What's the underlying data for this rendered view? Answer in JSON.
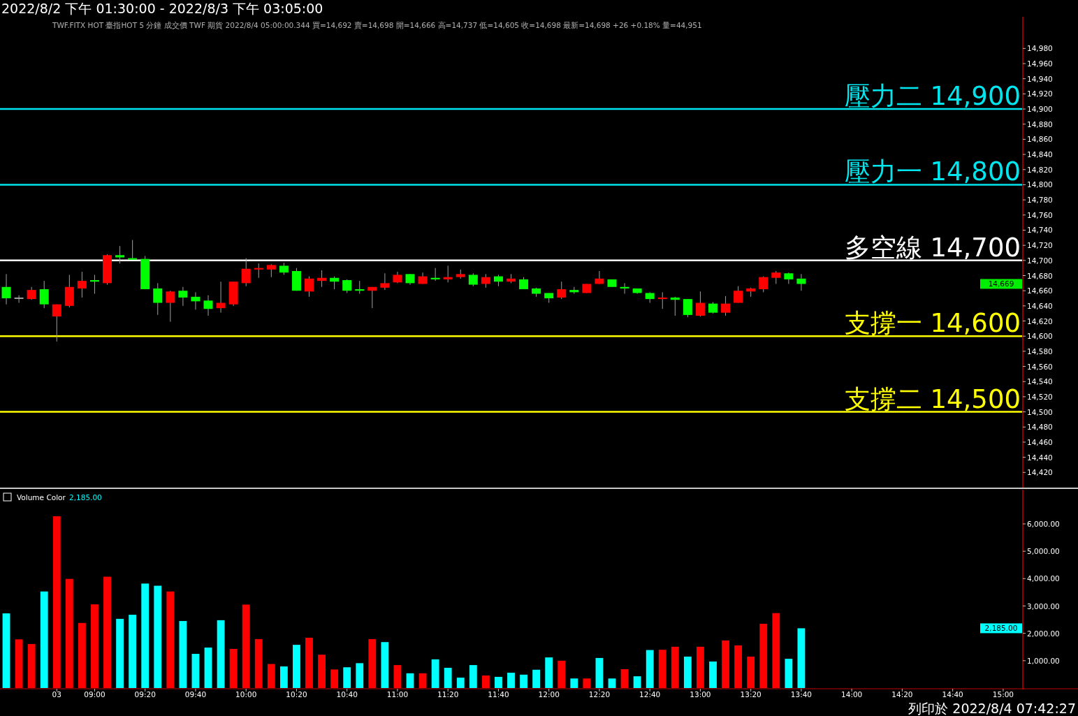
{
  "chart_data": [
    {
      "type": "candlestick",
      "title": "2022/8/2 下午 01:30:00 - 2022/8/3 下午 03:05:00",
      "subtitle": "TWF.FITX HOT  臺指HOT 5 分鐘  成交價 TWF 期貨 2022/8/4 05:00:00.344 買=14,692 賣=14,698 開=14,666 高=14,737 低=14,605 收=14,698 最新=14,698 +26 +0.18% 量=44,951",
      "categories": [
        null,
        null,
        null,
        null,
        null,
        null,
        null,
        null,
        null,
        null,
        null,
        null,
        null,
        null,
        null,
        null,
        null,
        null,
        null,
        null,
        null,
        null,
        null,
        null,
        null,
        null,
        null,
        null,
        null,
        null,
        null,
        null,
        null,
        null,
        null,
        null,
        null,
        null,
        null,
        null,
        null,
        null,
        null,
        null,
        null,
        null,
        null,
        null,
        null,
        null,
        null,
        null,
        null,
        null,
        null,
        null,
        null,
        null,
        null,
        null,
        null,
        null,
        null,
        null,
        null,
        null,
        null,
        null,
        null,
        null,
        null,
        null,
        null,
        null,
        null,
        null,
        null,
        null,
        null,
        null,
        null
      ],
      "ohlc": [
        [
          14665,
          14682,
          14642,
          14650
        ],
        [
          14651,
          14654,
          14644,
          14651
        ],
        [
          14649,
          14665,
          14648,
          14661
        ],
        [
          14662,
          14673,
          14637,
          14642
        ],
        [
          14626,
          14642,
          14593,
          14642
        ],
        [
          14640,
          14681,
          14638,
          14665
        ],
        [
          14663,
          14685,
          14651,
          14673
        ],
        [
          14674,
          14681,
          14656,
          14672
        ],
        [
          14670,
          14708,
          14668,
          14707
        ],
        [
          14707,
          14719,
          14696,
          14704
        ],
        [
          14703,
          14727,
          14701,
          14701
        ],
        [
          14702,
          14706,
          14662,
          14662
        ],
        [
          14663,
          14670,
          14628,
          14644
        ],
        [
          14644,
          14660,
          14619,
          14659
        ],
        [
          14660,
          14665,
          14640,
          14651
        ],
        [
          14652,
          14658,
          14635,
          14646
        ],
        [
          14647,
          14654,
          14627,
          14636
        ],
        [
          14637,
          14672,
          14631,
          14644
        ],
        [
          14642,
          14672,
          14640,
          14672
        ],
        [
          14670,
          14703,
          14666,
          14689
        ],
        [
          14688,
          14696,
          14677,
          14690
        ],
        [
          14688,
          14695,
          14678,
          14694
        ],
        [
          14693,
          14697,
          14681,
          14684
        ],
        [
          14686,
          14690,
          14660,
          14660
        ],
        [
          14659,
          14679,
          14652,
          14676
        ],
        [
          14673,
          14687,
          14665,
          14677
        ],
        [
          14677,
          14679,
          14662,
          14672
        ],
        [
          14674,
          14675,
          14657,
          14660
        ],
        [
          14662,
          14673,
          14656,
          14660
        ],
        [
          14660,
          14665,
          14637,
          14665
        ],
        [
          14664,
          14683,
          14661,
          14670
        ],
        [
          14671,
          14685,
          14670,
          14681
        ],
        [
          14682,
          14682,
          14668,
          14670
        ],
        [
          14669,
          14684,
          14669,
          14679
        ],
        [
          14677,
          14690,
          14673,
          14675
        ],
        [
          14675,
          14693,
          14671,
          14678
        ],
        [
          14678,
          14688,
          14676,
          14682
        ],
        [
          14681,
          14683,
          14666,
          14668
        ],
        [
          14669,
          14682,
          14664,
          14678
        ],
        [
          14679,
          14681,
          14666,
          14672
        ],
        [
          14672,
          14682,
          14670,
          14676
        ],
        [
          14675,
          14678,
          14662,
          14662
        ],
        [
          14663,
          14664,
          14652,
          14656
        ],
        [
          14657,
          14657,
          14644,
          14650
        ],
        [
          14651,
          14672,
          14649,
          14662
        ],
        [
          14661,
          14665,
          14656,
          14658
        ],
        [
          14657,
          14669,
          14657,
          14669
        ],
        [
          14669,
          14686,
          14669,
          14676
        ],
        [
          14675,
          14675,
          14665,
          14665
        ],
        [
          14665,
          14670,
          14656,
          14663
        ],
        [
          14663,
          14663,
          14656,
          14657
        ],
        [
          14657,
          14658,
          14644,
          14649
        ],
        [
          14649,
          14658,
          14636,
          14651
        ],
        [
          14651,
          14652,
          14627,
          14648
        ],
        [
          14649,
          14649,
          14625,
          14628
        ],
        [
          14627,
          14659,
          14626,
          14644
        ],
        [
          14643,
          14645,
          14630,
          14631
        ],
        [
          14631,
          14653,
          14627,
          14643
        ],
        [
          14644,
          14666,
          14644,
          14660
        ],
        [
          14659,
          14664,
          14652,
          14663
        ],
        [
          14662,
          14679,
          14658,
          14678
        ],
        [
          14677,
          14686,
          14669,
          14684
        ],
        [
          14683,
          14684,
          14669,
          14675
        ],
        [
          14676,
          14682,
          14660,
          14669
        ],
        null,
        null,
        null,
        null,
        null,
        null,
        null,
        null,
        null,
        null,
        null,
        null,
        null,
        null,
        null,
        null,
        null
      ],
      "colors": [
        "#00ff00",
        "#a0a0a0",
        "#ff0000",
        "#00ff00",
        "#ff0000",
        "#ff0000",
        "#ff0000",
        "#00ff00",
        "#ff0000",
        "#00ff00",
        "#00ff00",
        "#00ff00",
        "#00ff00",
        "#ff0000",
        "#00ff00",
        "#00ff00",
        "#00ff00",
        "#ff0000",
        "#ff0000",
        "#ff0000",
        "#ff0000",
        "#ff0000",
        "#00ff00",
        "#00ff00",
        "#ff0000",
        "#ff0000",
        "#00ff00",
        "#00ff00",
        "#00ff00",
        "#ff0000",
        "#ff0000",
        "#ff0000",
        "#00ff00",
        "#ff0000",
        "#00ff00",
        "#ff0000",
        "#ff0000",
        "#00ff00",
        "#ff0000",
        "#00ff00",
        "#ff0000",
        "#00ff00",
        "#00ff00",
        "#00ff00",
        "#ff0000",
        "#00ff00",
        "#ff0000",
        "#ff0000",
        "#00ff00",
        "#00ff00",
        "#00ff00",
        "#00ff00",
        "#ff0000",
        "#00ff00",
        "#00ff00",
        "#ff0000",
        "#00ff00",
        "#ff0000",
        "#ff0000",
        "#ff0000",
        "#ff0000",
        "#ff0000",
        "#00ff00",
        "#00ff00",
        null,
        null,
        null,
        null,
        null,
        null,
        null,
        null,
        null,
        null,
        null,
        null,
        null,
        null,
        null,
        null,
        null
      ],
      "ylim": [
        14400,
        15020
      ],
      "yticks": [
        {
          "value": 14420,
          "label": "14,420"
        },
        {
          "value": 14440,
          "label": "14,440"
        },
        {
          "value": 14460,
          "label": "14,460"
        },
        {
          "value": 14480,
          "label": "14,480"
        },
        {
          "value": 14500,
          "label": "14,500"
        },
        {
          "value": 14520,
          "label": "14,520"
        },
        {
          "value": 14540,
          "label": "14,540"
        },
        {
          "value": 14560,
          "label": "14,560"
        },
        {
          "value": 14580,
          "label": "14,580"
        },
        {
          "value": 14600,
          "label": "14,600"
        },
        {
          "value": 14620,
          "label": "14,620"
        },
        {
          "value": 14640,
          "label": "14,640"
        },
        {
          "value": 14660,
          "label": "14,660"
        },
        {
          "value": 14680,
          "label": "14,680"
        },
        {
          "value": 14700,
          "label": "14,700"
        },
        {
          "value": 14720,
          "label": "14,720"
        },
        {
          "value": 14740,
          "label": "14,740"
        },
        {
          "value": 14760,
          "label": "14,760"
        },
        {
          "value": 14780,
          "label": "14,780"
        },
        {
          "value": 14800,
          "label": "14,800"
        },
        {
          "value": 14820,
          "label": "14,820"
        },
        {
          "value": 14840,
          "label": "14,840"
        },
        {
          "value": 14860,
          "label": "14,860"
        },
        {
          "value": 14880,
          "label": "14,880"
        },
        {
          "value": 14900,
          "label": "14,900"
        },
        {
          "value": 14920,
          "label": "14,920"
        },
        {
          "value": 14940,
          "label": "14,940"
        },
        {
          "value": 14960,
          "label": "14,960"
        },
        {
          "value": 14980,
          "label": "14,980"
        }
      ],
      "ref_lines": [
        {
          "axis": "y",
          "value": 14900,
          "label": "壓力二 14,900",
          "color": "#00e5ee"
        },
        {
          "axis": "y",
          "value": 14800,
          "label": "壓力一 14,800",
          "color": "#00e5ee"
        },
        {
          "axis": "y",
          "value": 14700,
          "label": "多空線 14,700",
          "color": "#ffffff"
        },
        {
          "axis": "y",
          "value": 14600,
          "label": "支撐一 14,600",
          "color": "#ffff00"
        },
        {
          "axis": "y",
          "value": 14500,
          "label": "支撐二 14,500",
          "color": "#ffff00"
        }
      ],
      "annotations": [
        "14,669"
      ],
      "tick_labels": "y"
    },
    {
      "type": "bar",
      "categories": [
        null,
        null,
        null,
        null,
        "03",
        null,
        null,
        "09:00",
        null,
        null,
        null,
        "09:20",
        null,
        null,
        null,
        "09:40",
        null,
        null,
        null,
        "10:00",
        null,
        null,
        null,
        "10:20",
        null,
        null,
        null,
        "10:40",
        null,
        null,
        null,
        "11:00",
        null,
        null,
        null,
        "11:20",
        null,
        null,
        null,
        "11:40",
        null,
        null,
        null,
        "12:00",
        null,
        null,
        null,
        "12:20",
        null,
        null,
        null,
        "12:40",
        null,
        null,
        null,
        "13:00",
        null,
        null,
        null,
        "13:20",
        null,
        null,
        null,
        "13:40",
        null,
        null,
        null,
        "14:00",
        null,
        null,
        null,
        "14:20",
        null,
        null,
        null,
        "14:40",
        null,
        null,
        null,
        "15:00",
        null
      ],
      "values": [
        2730,
        1780,
        1610,
        3530,
        6280,
        3990,
        2380,
        3060,
        4070,
        2530,
        2680,
        3820,
        3740,
        3530,
        2450,
        1250,
        1480,
        2480,
        1430,
        3050,
        1790,
        880,
        790,
        1580,
        1840,
        1220,
        680,
        760,
        910,
        1790,
        1680,
        840,
        540,
        540,
        1050,
        740,
        380,
        840,
        460,
        410,
        560,
        490,
        670,
        1120,
        1000,
        350,
        350,
        1100,
        350,
        690,
        430,
        1390,
        1400,
        1510,
        1150,
        1510,
        970,
        1740,
        1560,
        1150,
        2350,
        2740,
        1070,
        2185,
        null,
        null,
        null,
        null,
        null,
        null,
        null,
        null,
        null,
        null,
        null,
        null,
        null,
        null,
        null,
        null,
        null
      ],
      "colors": [
        "#00ffff",
        "#ff0000",
        "#ff0000",
        "#00ffff",
        "#ff0000",
        "#ff0000",
        "#ff0000",
        "#ff0000",
        "#ff0000",
        "#00ffff",
        "#00ffff",
        "#00ffff",
        "#00ffff",
        "#ff0000",
        "#00ffff",
        "#00ffff",
        "#00ffff",
        "#00ffff",
        "#ff0000",
        "#ff0000",
        "#ff0000",
        "#ff0000",
        "#00ffff",
        "#00ffff",
        "#ff0000",
        "#ff0000",
        "#ff0000",
        "#00ffff",
        "#00ffff",
        "#ff0000",
        "#00ffff",
        "#ff0000",
        "#00ffff",
        "#ff0000",
        "#00ffff",
        "#00ffff",
        "#00ffff",
        "#00ffff",
        "#ff0000",
        "#00ffff",
        "#00ffff",
        "#00ffff",
        "#00ffff",
        "#00ffff",
        "#ff0000",
        "#00ffff",
        "#ff0000",
        "#00ffff",
        "#00ffff",
        "#ff0000",
        "#00ffff",
        "#00ffff",
        "#ff0000",
        "#ff0000",
        "#00ffff",
        "#ff0000",
        "#00ffff",
        "#ff0000",
        "#ff0000",
        "#ff0000",
        "#ff0000",
        "#ff0000",
        "#00ffff",
        "#00ffff",
        null,
        null,
        null,
        null,
        null,
        null,
        null,
        null,
        null,
        null,
        null,
        null,
        null,
        null,
        null,
        null,
        null
      ],
      "ylim": [
        0,
        7200
      ],
      "yticks": [
        {
          "value": 1000,
          "label": "1,000.00"
        },
        {
          "value": 2000,
          "label": "2,000.00"
        },
        {
          "value": 3000,
          "label": "3,000.00"
        },
        {
          "value": 4000,
          "label": "4,000.00"
        },
        {
          "value": 5000,
          "label": "5,000.00"
        },
        {
          "value": 6000,
          "label": "6,000.00"
        }
      ],
      "annotations": [
        "Volume Color",
        "2,185.00",
        "列印於 2022/8/4 07:42:27",
        "2,185.00"
      ]
    }
  ]
}
